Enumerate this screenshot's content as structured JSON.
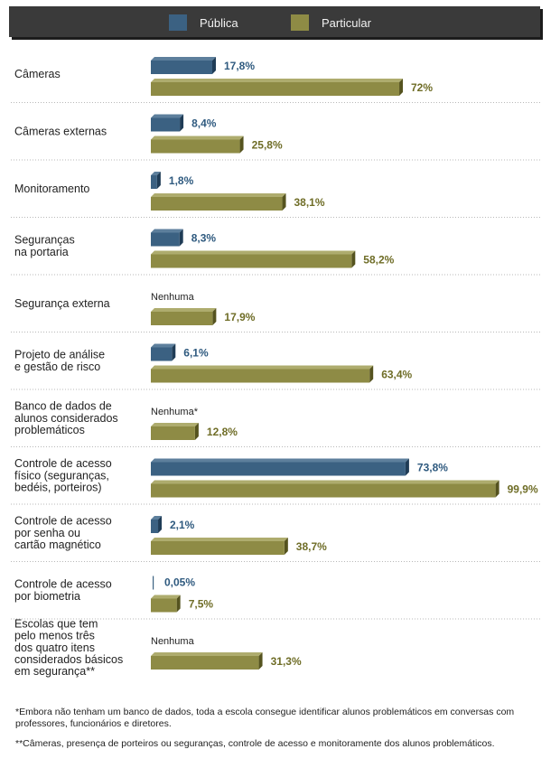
{
  "legend": [
    {
      "label": "Pública",
      "color": "#3b6182"
    },
    {
      "label": "Particular",
      "color": "#8e8b45"
    }
  ],
  "chart_data": {
    "type": "bar",
    "orientation": "horizontal",
    "categories": [
      [
        "Câmeras"
      ],
      [
        "Câmeras externas"
      ],
      [
        "Monitoramento"
      ],
      [
        "Seguranças",
        "na portaria"
      ],
      [
        "Segurança externa"
      ],
      [
        "Projeto de análise",
        "e gestão de risco"
      ],
      [
        "Banco de dados de",
        "alunos considerados",
        "problemáticos"
      ],
      [
        "Controle de acesso",
        "físico (seguranças,",
        "bedéis, porteiros)"
      ],
      [
        "Controle de acesso",
        "por senha ou",
        "cartão magnético"
      ],
      [
        "Controle de acesso",
        "por biometria"
      ],
      [
        "Escolas que tem",
        "pelo menos três",
        "dos quatro itens",
        "considerados básicos",
        "em segurança**"
      ]
    ],
    "series": [
      {
        "name": "Pública",
        "values": [
          17.8,
          8.4,
          1.8,
          8.3,
          null,
          6.1,
          null,
          73.8,
          2.1,
          0.05,
          null
        ],
        "labels": [
          "17,8%",
          "8,4%",
          "1,8%",
          "8,3%",
          "Nenhuma",
          "6,1%",
          "Nenhuma*",
          "73,8%",
          "2,1%",
          "0,05%",
          "Nenhuma"
        ]
      },
      {
        "name": "Particular",
        "values": [
          72,
          25.8,
          38.1,
          58.2,
          17.9,
          63.4,
          12.8,
          99.9,
          38.7,
          7.5,
          31.3
        ],
        "labels": [
          "72%",
          "25,8%",
          "38,1%",
          "58,2%",
          "17,9%",
          "63,4%",
          "12,8%",
          "99,9%",
          "38,7%",
          "7,5%",
          "31,3%"
        ]
      }
    ],
    "xlim": [
      0,
      100
    ],
    "grid": false,
    "legend_position": "top"
  },
  "footnotes": [
    "*Embora não tenham um banco de dados, toda a escola consegue identificar alunos problemáticos em conversas com professores, funcionários e diretores.",
    "**Câmeras, presença de porteiros ou seguranças, controle de acesso e monitoramente dos alunos problemáticos."
  ]
}
